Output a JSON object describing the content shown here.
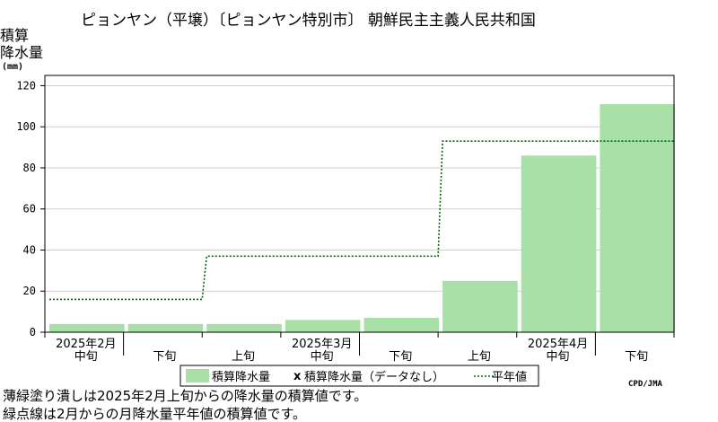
{
  "chart_data": {
    "type": "area",
    "title": "ピョンヤン（平壌）〔ピョンヤン特別市〕 朝鮮民主主義人民共和国",
    "ylabel_lines": [
      "積算",
      "降水量",
      "(mm)"
    ],
    "ylim": [
      0,
      125
    ],
    "yticks": [
      0,
      20,
      40,
      60,
      80,
      100,
      120
    ],
    "periods": [
      "2025年2月中旬",
      "2025年2月下旬",
      "2025年3月上旬",
      "2025年3月中旬",
      "2025年3月下旬",
      "2025年4月上旬",
      "2025年4月中旬",
      "2025年4月下旬"
    ],
    "x_tick_labels": [
      "中旬",
      "下旬",
      "上旬",
      "中旬",
      "下旬",
      "上旬",
      "中旬",
      "下旬"
    ],
    "month_labels": [
      "2025年2月",
      "2025年3月",
      "2025年4月"
    ],
    "series": [
      {
        "name": "積算降水量",
        "values": [
          4,
          4,
          4,
          6,
          7,
          25,
          86,
          111
        ],
        "color": "#a8e0a8"
      },
      {
        "name": "積算降水量（データなし）",
        "values": [],
        "color": "#000000"
      },
      {
        "name": "平年値",
        "values": [
          16,
          16,
          37,
          37,
          37,
          93,
          93,
          93
        ],
        "color": "#006400"
      }
    ],
    "grid": true,
    "legend_position": "bottom",
    "legend_marker_nodata": "x",
    "captions": [
      "薄緑塗り潰しは2025年2月上旬からの降水量の積算値です。",
      "緑点線は2月からの月降水量平年値の積算値です。"
    ],
    "credit": "CPD/JMA"
  }
}
